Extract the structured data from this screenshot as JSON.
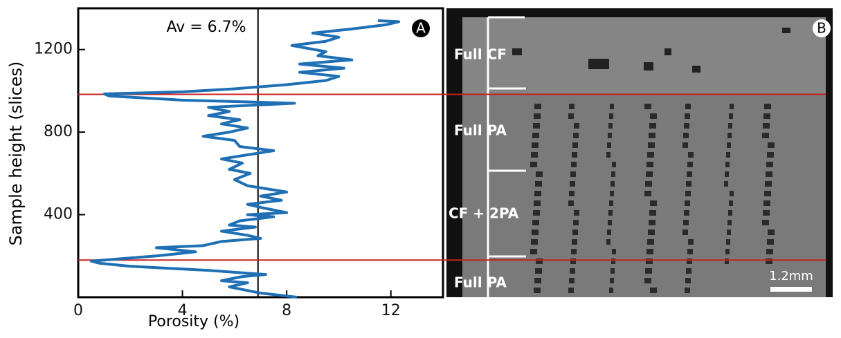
{
  "chart_data": {
    "type": "line",
    "annotation": "Av = 6.7%",
    "average_x": 6.9,
    "xlabel": "Porosity (%)",
    "ylabel": "Sample height (slices)",
    "panel_label": "A",
    "color": "#1f6fb4",
    "hlines": [
      983,
      180
    ],
    "hline_color": "#cc1f1f",
    "xlim": [
      0,
      14
    ],
    "xticks": [
      0,
      4,
      8,
      12
    ],
    "ylim": [
      0,
      1400
    ],
    "yticks": [
      400,
      800,
      1200
    ],
    "x": [
      8.4,
      7.0,
      5.8,
      6.5,
      5.5,
      6.3,
      7.2,
      5.0,
      2.0,
      0.8,
      0.5,
      1.5,
      3.0,
      4.5,
      3.0,
      4.8,
      5.5,
      7.0,
      6.5,
      5.5,
      6.8,
      5.8,
      6.2,
      7.5,
      6.5,
      8.0,
      7.2,
      6.5,
      7.8,
      7.0,
      8.0,
      6.5,
      6.0,
      6.6,
      5.8,
      6.3,
      5.5,
      6.5,
      7.5,
      6.2,
      6.0,
      4.8,
      5.8,
      6.5,
      5.5,
      6.2,
      5.0,
      5.8,
      5.0,
      8.3,
      4.0,
      1.2,
      1.0,
      4.0,
      6.0,
      8.0,
      9.5,
      10.0,
      8.5,
      10.2,
      8.5,
      10.5,
      9.2,
      9.5,
      8.2,
      9.5,
      10.0,
      9.0,
      10.5,
      11.8,
      12.3,
      11.5
    ],
    "values": [
      0,
      20,
      50,
      70,
      80,
      100,
      110,
      130,
      150,
      165,
      175,
      185,
      200,
      220,
      240,
      250,
      270,
      285,
      300,
      320,
      340,
      350,
      370,
      390,
      400,
      410,
      430,
      450,
      470,
      490,
      510,
      540,
      570,
      600,
      620,
      650,
      670,
      690,
      710,
      730,
      760,
      780,
      800,
      820,
      840,
      860,
      880,
      900,
      920,
      940,
      955,
      975,
      985,
      995,
      1010,
      1030,
      1050,
      1070,
      1090,
      1110,
      1130,
      1150,
      1170,
      1190,
      1220,
      1240,
      1260,
      1280,
      1300,
      1320,
      1335,
      1340
    ]
  },
  "image_panel": {
    "panel_label": "B",
    "regions": [
      "Full CF",
      "Full PA",
      "CF + 2PA",
      "Full PA"
    ],
    "scale_bar": "1.2mm"
  }
}
